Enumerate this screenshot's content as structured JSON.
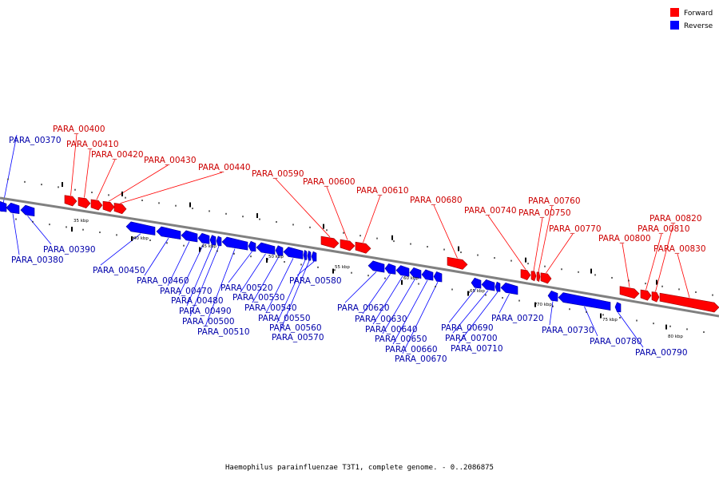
{
  "caption": "Haemophilus parainfluenzae T3T1, complete genome. - 0..2086875",
  "legend": [
    {
      "label": "Forward",
      "color": "#ff0000"
    },
    {
      "label": "Reverse",
      "color": "#0000ff"
    }
  ],
  "colors": {
    "forward": "#ff0000",
    "reverse": "#0000ff",
    "backbone": "#808080",
    "forward_text": "#cc0000",
    "reverse_text": "#0000aa"
  },
  "scale_labels": [
    "35 kbp",
    "40 kbp",
    "45 kbp",
    "50 kbp",
    "55 kbp",
    "60 kbp",
    "65 kbp",
    "70 kbp",
    "75 kbp",
    "80 kbp"
  ],
  "genes": [
    {
      "name": "PARA_00370",
      "strand": "reverse"
    },
    {
      "name": "PARA_00380",
      "strand": "reverse"
    },
    {
      "name": "PARA_00390",
      "strand": "reverse"
    },
    {
      "name": "PARA_00400",
      "strand": "forward"
    },
    {
      "name": "PARA_00410",
      "strand": "forward"
    },
    {
      "name": "PARA_00420",
      "strand": "forward"
    },
    {
      "name": "PARA_00430",
      "strand": "forward"
    },
    {
      "name": "PARA_00440",
      "strand": "forward"
    },
    {
      "name": "PARA_00450",
      "strand": "reverse"
    },
    {
      "name": "PARA_00460",
      "strand": "reverse"
    },
    {
      "name": "PARA_00470",
      "strand": "reverse"
    },
    {
      "name": "PARA_00480",
      "strand": "reverse"
    },
    {
      "name": "PARA_00490",
      "strand": "reverse"
    },
    {
      "name": "PARA_00500",
      "strand": "reverse"
    },
    {
      "name": "PARA_00510",
      "strand": "reverse"
    },
    {
      "name": "PARA_00520",
      "strand": "reverse"
    },
    {
      "name": "PARA_00530",
      "strand": "reverse"
    },
    {
      "name": "PARA_00540",
      "strand": "reverse"
    },
    {
      "name": "PARA_00550",
      "strand": "reverse"
    },
    {
      "name": "PARA_00560",
      "strand": "reverse"
    },
    {
      "name": "PARA_00570",
      "strand": "reverse"
    },
    {
      "name": "PARA_00580",
      "strand": "reverse"
    },
    {
      "name": "PARA_00590",
      "strand": "forward"
    },
    {
      "name": "PARA_00600",
      "strand": "forward"
    },
    {
      "name": "PARA_00610",
      "strand": "forward"
    },
    {
      "name": "PARA_00620",
      "strand": "reverse"
    },
    {
      "name": "PARA_00630",
      "strand": "reverse"
    },
    {
      "name": "PARA_00640",
      "strand": "reverse"
    },
    {
      "name": "PARA_00650",
      "strand": "reverse"
    },
    {
      "name": "PARA_00660",
      "strand": "reverse"
    },
    {
      "name": "PARA_00670",
      "strand": "reverse"
    },
    {
      "name": "PARA_00680",
      "strand": "forward"
    },
    {
      "name": "PARA_00690",
      "strand": "reverse"
    },
    {
      "name": "PARA_00700",
      "strand": "reverse"
    },
    {
      "name": "PARA_00710",
      "strand": "reverse"
    },
    {
      "name": "PARA_00720",
      "strand": "reverse"
    },
    {
      "name": "PARA_00730",
      "strand": "reverse"
    },
    {
      "name": "PARA_00740",
      "strand": "forward"
    },
    {
      "name": "PARA_00750",
      "strand": "forward"
    },
    {
      "name": "PARA_00760",
      "strand": "forward"
    },
    {
      "name": "PARA_00770",
      "strand": "forward"
    },
    {
      "name": "PARA_00780",
      "strand": "reverse"
    },
    {
      "name": "PARA_00790",
      "strand": "reverse"
    },
    {
      "name": "PARA_00800",
      "strand": "forward"
    },
    {
      "name": "PARA_00810",
      "strand": "forward"
    },
    {
      "name": "PARA_00820",
      "strand": "forward"
    },
    {
      "name": "PARA_00830",
      "strand": "forward"
    }
  ]
}
